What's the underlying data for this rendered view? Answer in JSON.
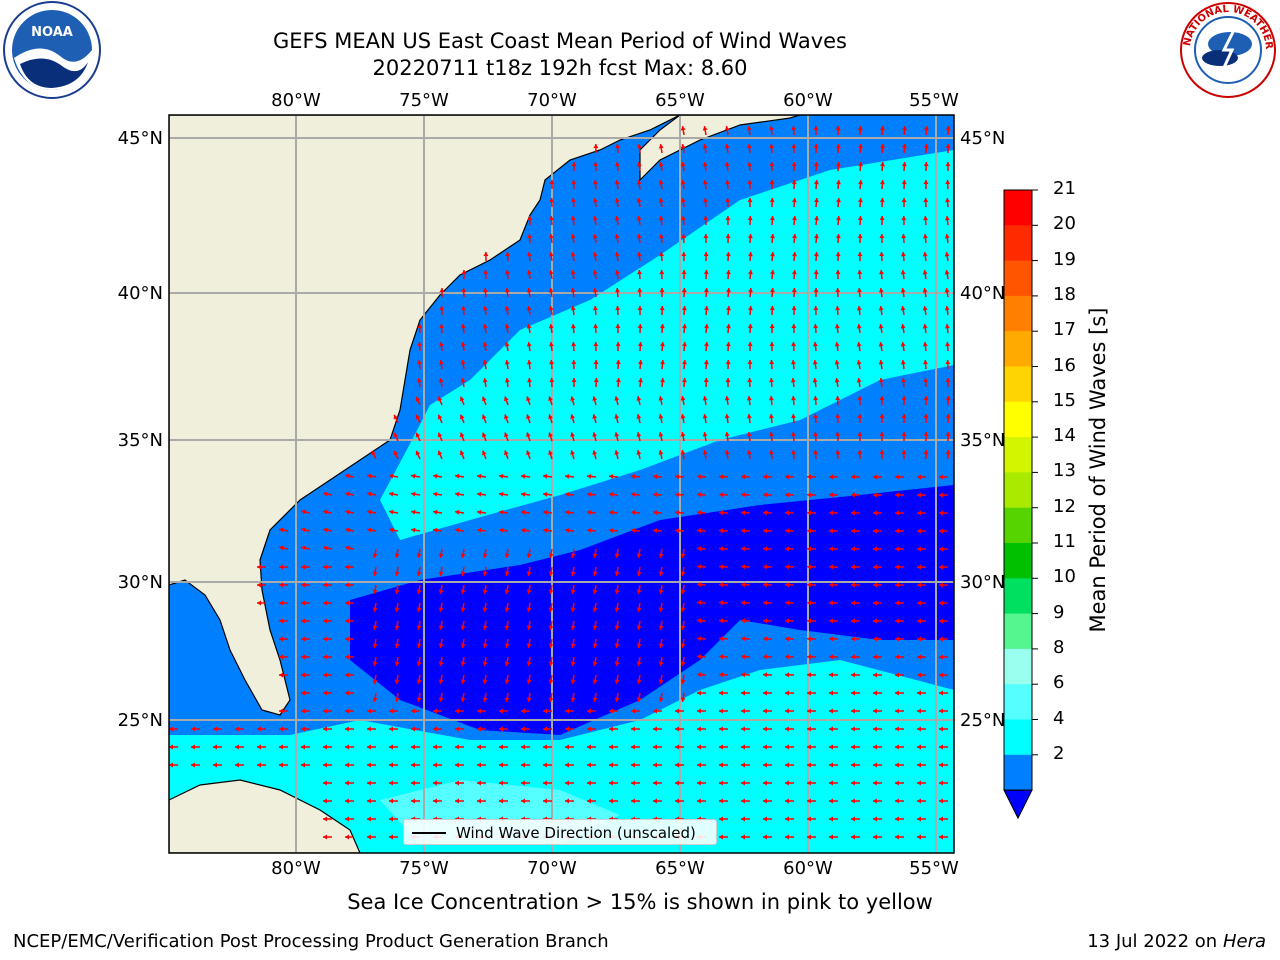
{
  "title": {
    "line1": "GEFS MEAN US East Coast Mean Period of Wind Waves",
    "line2": "20220711 t18z 192h fcst   Max: 8.60"
  },
  "map": {
    "lon_labels": [
      "80°W",
      "75°W",
      "70°W",
      "65°W",
      "60°W",
      "55°W"
    ],
    "lat_labels": [
      "45°N",
      "40°N",
      "35°N",
      "30°N",
      "25°N"
    ],
    "legend_label": "Wind Wave Direction (unscaled)",
    "arrow_color": "#ff0000",
    "land_color": "#efefdc"
  },
  "colorbar": {
    "title": "Mean Period of Wind Waves [s]",
    "ticks": [
      "21",
      "20",
      "19",
      "18",
      "17",
      "16",
      "15",
      "14",
      "13",
      "12",
      "11",
      "10",
      "9",
      "8",
      "6",
      "4",
      "2"
    ],
    "colors": [
      "#ff0000",
      "#ff2a00",
      "#ff5500",
      "#ff8000",
      "#ffaa00",
      "#ffd500",
      "#ffff00",
      "#d4f500",
      "#aaea00",
      "#55d400",
      "#00c000",
      "#00e060",
      "#55f590",
      "#99ffee",
      "#55ffff",
      "#00ffff",
      "#0080ff"
    ],
    "under_color": "#0000ff"
  },
  "logos": {
    "noaa": "NOAA",
    "nws_text": "NATIONAL WEATHER SERVICE"
  },
  "footer": {
    "ice_note": "Sea Ice Concentration > 15% is shown in pink to yellow",
    "credit_left": "NCEP/EMC/Verification Post Processing Product Generation Branch",
    "credit_date": "13 Jul 2022 on ",
    "credit_host": "Hera"
  }
}
